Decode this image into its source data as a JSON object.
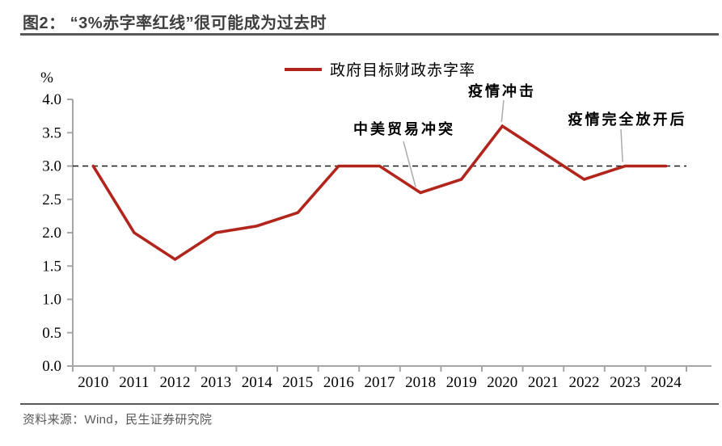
{
  "figure": {
    "title": "图2： “3%赤字率红线”很可能成为过去时",
    "source": "资料来源：Wind，民生证券研究院"
  },
  "chart_data": {
    "type": "line",
    "unit_label": "%",
    "categories": [
      "2010",
      "2011",
      "2012",
      "2013",
      "2014",
      "2015",
      "2016",
      "2017",
      "2018",
      "2019",
      "2020",
      "2021",
      "2022",
      "2023",
      "2024"
    ],
    "series": [
      {
        "name": "政府目标财政赤字率",
        "color": "#b2251c",
        "values": [
          3.0,
          2.0,
          1.6,
          2.0,
          2.1,
          2.3,
          3.0,
          3.0,
          2.6,
          2.8,
          3.6,
          3.2,
          2.8,
          3.0,
          3.0
        ]
      }
    ],
    "ylim": [
      0.0,
      4.0
    ],
    "ytick_step": 0.5,
    "grid": false,
    "legend_position": "top-center",
    "reference_line": {
      "value": 3.0,
      "style": "dashed",
      "color": "#1a1a1a"
    },
    "annotations": [
      {
        "label": "中美贸易冲突",
        "year": "2018",
        "value": 2.6
      },
      {
        "label": "疫情冲击",
        "year": "2020",
        "value": 3.6
      },
      {
        "label": "疫情完全放开后",
        "year": "2023",
        "value": 3.0
      }
    ],
    "colors": {
      "line": "#b2251c",
      "axis": "#a6a6a6",
      "reference": "#1a1a1a",
      "leader": "#ababab",
      "title_text": "#3f3f3f",
      "rule": "#595959",
      "source_text": "#595959"
    }
  }
}
